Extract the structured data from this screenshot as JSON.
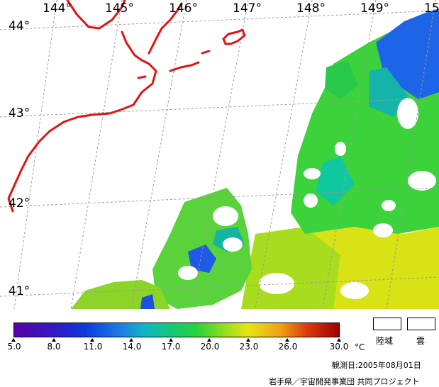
{
  "map": {
    "longitude_labels": [
      "144°",
      "145°",
      "146°",
      "147°",
      "148°",
      "149°",
      "15"
    ],
    "latitude_labels": [
      "44°",
      "43°",
      "42°",
      "41°"
    ],
    "colors": {
      "coastline": "#e01414",
      "grid": "#9a9a9a"
    }
  },
  "colorbar": {
    "ticks": [
      "5.0",
      "8.0",
      "11.0",
      "14.0",
      "17.0",
      "20.0",
      "23.0",
      "26.0",
      "30.0"
    ],
    "unit": "°C"
  },
  "legend": {
    "land": "陸域",
    "cloud": "雲"
  },
  "footer": {
    "observation_date": "観測日:2005年08月01日",
    "credit": "岩手県／宇宙開発事業団 共同プロジェクト"
  }
}
